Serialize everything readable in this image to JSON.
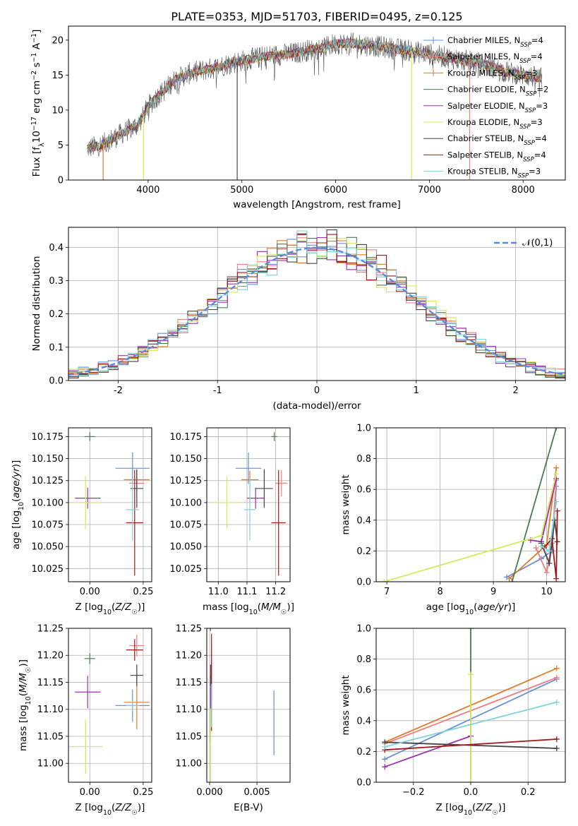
{
  "figure": {
    "title": "PLATE=0353, MJD=51703, FIBERID=0495, z=0.125"
  },
  "colors": {
    "chabrier_miles": "#6a8fd8",
    "salpeter_miles": "#ee7f7f",
    "kroupa_miles": "#e07b2a",
    "chabrier_elodie": "#4a7a55",
    "salpeter_elodie": "#9b2fb0",
    "kroupa_elodie": "#d4ea5a",
    "chabrier_stelib": "#444444",
    "salpeter_stelib": "#a01818",
    "kroupa_stelib": "#7fd3d8"
  },
  "chart_data": [
    {
      "id": "spectrum",
      "type": "line",
      "xlabel": "wavelength [Angstrom, rest frame]",
      "ylabel": "Flux [f_λ 10^-17 erg cm^-2 s^-1 A^-1]",
      "xlim": [
        3150,
        8450
      ],
      "ylim": [
        0,
        22
      ],
      "xticks": [
        4000,
        5000,
        6000,
        7000,
        8000
      ],
      "yticks": [
        0,
        5,
        10,
        15,
        20
      ],
      "grid": false,
      "legend_position": "right",
      "legend": [
        "Chabrier MILES, N_SSP=4",
        "Salpeter MILES, N_SSP=4",
        "Kroupa MILES, N_SSP=3",
        "Chabrier ELODIE, N_SSP=2",
        "Salpeter ELODIE, N_SSP=3",
        "Kroupa ELODIE, N_SSP=3",
        "Chabrier STELIB, N_SSP=4",
        "Salpeter STELIB, N_SSP=4",
        "Kroupa STELIB, N_SSP=3"
      ],
      "continuum": {
        "x": [
          3350,
          3500,
          3700,
          3900,
          4000,
          4100,
          4300,
          4500,
          4700,
          4900,
          5100,
          5300,
          5500,
          5700,
          5900,
          6000,
          6200,
          6400,
          6600,
          6800,
          7000,
          7200,
          7400,
          7600,
          7800,
          8000,
          8200
        ],
        "y": [
          4.5,
          5.0,
          6.5,
          8.0,
          10.5,
          12.0,
          14.5,
          15.5,
          16.0,
          16.8,
          17.3,
          17.8,
          18.0,
          18.5,
          19.0,
          19.5,
          19.5,
          19.2,
          18.8,
          18.5,
          18.0,
          17.5,
          17.0,
          16.5,
          15.5,
          15.0,
          14.5
        ]
      }
    },
    {
      "id": "residuals",
      "type": "histogram",
      "xlabel": "(data-model)/error",
      "ylabel": "Normed distribution",
      "xlim": [
        -2.5,
        2.5
      ],
      "ylim": [
        0,
        0.46
      ],
      "xticks": [
        -2,
        -1,
        0,
        1,
        2
      ],
      "yticks": [
        0.0,
        0.1,
        0.2,
        0.3,
        0.4
      ],
      "grid": true,
      "legend": [
        "𝒩(0,1)"
      ],
      "legend_position": "top-right",
      "bin_width": 0.1,
      "reference_curve": "gaussian mean 0 sigma 1"
    },
    {
      "id": "age_vs_Z",
      "type": "errorbar",
      "xlabel": "Z [log10(Z/Z☉)]",
      "ylabel": "age  [log10(age/yr)]",
      "xlim": [
        -0.1,
        0.29
      ],
      "ylim": [
        10.01,
        10.185
      ],
      "xticks": [
        0.0,
        0.25
      ],
      "yticks": [
        10.025,
        10.05,
        10.075,
        10.1,
        10.125,
        10.15,
        10.175
      ],
      "grid": true,
      "points": [
        {
          "key": "chabrier_miles",
          "x": 0.2,
          "xerr": 0.08,
          "y": 10.139,
          "yerr": 0.018
        },
        {
          "key": "salpeter_miles",
          "x": 0.22,
          "xerr": 0.035,
          "y": 10.122,
          "yerr": 0.015
        },
        {
          "key": "kroupa_miles",
          "x": 0.22,
          "xerr": 0.06,
          "y": 10.126,
          "yerr": 0.01
        },
        {
          "key": "chabrier_elodie",
          "x": 0.0,
          "xerr": 0.025,
          "y": 10.175,
          "yerr": 0.005
        },
        {
          "key": "salpeter_elodie",
          "x": -0.01,
          "xerr": 0.06,
          "y": 10.105,
          "yerr": 0.012
        },
        {
          "key": "kroupa_elodie",
          "x": -0.02,
          "xerr": 0.08,
          "y": 10.1,
          "yerr": 0.03
        },
        {
          "key": "chabrier_stelib",
          "x": 0.22,
          "xerr": 0.03,
          "y": 10.116,
          "yerr": 0.022
        },
        {
          "key": "salpeter_stelib",
          "x": 0.21,
          "xerr": 0.04,
          "y": 10.077,
          "yerr": 0.06
        },
        {
          "key": "kroupa_stelib",
          "x": 0.2,
          "xerr": 0.03,
          "y": 10.092,
          "yerr": 0.035
        }
      ]
    },
    {
      "id": "age_vs_mass",
      "type": "errorbar",
      "xlabel": "mass [log10(M/M☉)]",
      "ylabel": "",
      "xlim": [
        10.96,
        11.25
      ],
      "ylim": [
        10.01,
        10.185
      ],
      "xticks": [
        11.0,
        11.1,
        11.2
      ],
      "yticks": [
        10.025,
        10.05,
        10.075,
        10.1,
        10.125,
        10.15,
        10.175
      ],
      "grid": true,
      "points": [
        {
          "key": "chabrier_miles",
          "x": 11.105,
          "xerr": 0.045,
          "y": 10.139,
          "yerr": 0.018
        },
        {
          "key": "salpeter_miles",
          "x": 11.22,
          "xerr": 0.02,
          "y": 10.122,
          "yerr": 0.015
        },
        {
          "key": "kroupa_miles",
          "x": 11.11,
          "xerr": 0.03,
          "y": 10.126,
          "yerr": 0.01
        },
        {
          "key": "chabrier_elodie",
          "x": 11.195,
          "xerr": 0.01,
          "y": 10.175,
          "yerr": 0.005
        },
        {
          "key": "salpeter_elodie",
          "x": 11.13,
          "xerr": 0.03,
          "y": 10.105,
          "yerr": 0.012
        },
        {
          "key": "kroupa_elodie",
          "x": 11.03,
          "xerr": 0.05,
          "y": 10.1,
          "yerr": 0.03
        },
        {
          "key": "chabrier_stelib",
          "x": 11.16,
          "xerr": 0.03,
          "y": 10.116,
          "yerr": 0.022
        },
        {
          "key": "salpeter_stelib",
          "x": 11.21,
          "xerr": 0.025,
          "y": 10.077,
          "yerr": 0.06
        },
        {
          "key": "kroupa_stelib",
          "x": 11.11,
          "xerr": 0.02,
          "y": 10.092,
          "yerr": 0.035
        }
      ]
    },
    {
      "id": "massweight_vs_age",
      "type": "line",
      "xlabel": "age  [log10(age/yr)]",
      "ylabel": "mass weight",
      "xlim": [
        6.8,
        10.35
      ],
      "ylim": [
        0,
        1
      ],
      "xticks": [
        7,
        8,
        9,
        10
      ],
      "yticks": [
        0.0,
        0.2,
        0.4,
        0.6,
        0.8,
        1.0
      ],
      "grid": true,
      "series": [
        {
          "key": "chabrier_miles",
          "x": [
            9.25,
            9.9,
            10.1,
            10.18
          ],
          "y": [
            0.03,
            0.15,
            0.2,
            0.62
          ]
        },
        {
          "key": "salpeter_miles",
          "x": [
            9.8,
            10.0,
            10.1,
            10.18
          ],
          "y": [
            0.22,
            0.06,
            0.25,
            0.66
          ]
        },
        {
          "key": "kroupa_miles",
          "x": [
            9.3,
            10.0,
            10.18
          ],
          "y": [
            0.02,
            0.24,
            0.74
          ]
        },
        {
          "key": "chabrier_elodie",
          "x": [
            9.35,
            10.18
          ],
          "y": [
            0.0,
            1.0
          ]
        },
        {
          "key": "salpeter_elodie",
          "x": [
            9.7,
            9.9,
            10.18
          ],
          "y": [
            0.27,
            0.26,
            0.67
          ]
        },
        {
          "key": "kroupa_elodie",
          "x": [
            6.95,
            9.9,
            10.18
          ],
          "y": [
            0.0,
            0.3,
            0.7
          ]
        },
        {
          "key": "chabrier_stelib",
          "x": [
            9.9,
            10.05,
            10.15,
            10.2
          ],
          "y": [
            0.25,
            0.12,
            0.4,
            0.26
          ]
        },
        {
          "key": "salpeter_stelib",
          "x": [
            9.95,
            10.1,
            10.18,
            10.2
          ],
          "y": [
            0.22,
            0.28,
            0.02,
            0.46
          ]
        },
        {
          "key": "kroupa_stelib",
          "x": [
            9.9,
            10.05,
            10.18
          ],
          "y": [
            0.23,
            0.2,
            0.52
          ]
        }
      ]
    },
    {
      "id": "mass_vs_Z",
      "type": "errorbar",
      "xlabel": "Z [log10(Z/Z☉)]",
      "ylabel": "mass [log10(M/M☉)]",
      "xlim": [
        -0.1,
        0.29
      ],
      "ylim": [
        10.965,
        11.25
      ],
      "xticks": [
        0.0,
        0.25
      ],
      "yticks": [
        11.0,
        11.05,
        11.1,
        11.15,
        11.2,
        11.25
      ],
      "grid": true,
      "points": [
        {
          "key": "chabrier_miles",
          "x": 0.2,
          "xerr": 0.08,
          "y": 11.107,
          "yerr": 0.03
        },
        {
          "key": "salpeter_miles",
          "x": 0.22,
          "xerr": 0.035,
          "y": 11.218,
          "yerr": 0.02
        },
        {
          "key": "kroupa_miles",
          "x": 0.22,
          "xerr": 0.06,
          "y": 11.113,
          "yerr": 0.05
        },
        {
          "key": "chabrier_elodie",
          "x": 0.0,
          "xerr": 0.025,
          "y": 11.194,
          "yerr": 0.01
        },
        {
          "key": "salpeter_elodie",
          "x": -0.01,
          "xerr": 0.06,
          "y": 11.132,
          "yerr": 0.03
        },
        {
          "key": "kroupa_elodie",
          "x": -0.02,
          "xerr": 0.08,
          "y": 11.031,
          "yerr": 0.05
        },
        {
          "key": "chabrier_stelib",
          "x": 0.22,
          "xerr": 0.03,
          "y": 11.163,
          "yerr": 0.02
        },
        {
          "key": "salpeter_stelib",
          "x": 0.21,
          "xerr": 0.04,
          "y": 11.21,
          "yerr": 0.02
        },
        {
          "key": "kroupa_stelib",
          "x": 0.2,
          "xerr": 0.03,
          "y": 11.107,
          "yerr": 0.01
        }
      ]
    },
    {
      "id": "mass_vs_ebv",
      "type": "errorbar",
      "xlabel": "E(B-V)",
      "ylabel": "",
      "xlim": [
        -0.0003,
        0.0085
      ],
      "ylim": [
        10.965,
        11.25
      ],
      "xticks": [
        0.0,
        0.005
      ],
      "yticks": [
        11.0,
        11.05,
        11.1,
        11.15,
        11.2,
        11.25
      ],
      "grid": true,
      "points": [
        {
          "key": "chabrier_miles",
          "x": 0.0068,
          "xerr": 0,
          "y": 11.075,
          "yerr": 0.06
        },
        {
          "key": "salpeter_miles",
          "x": 0.0002,
          "xerr": 0,
          "y": 11.17,
          "yerr": 0.05
        },
        {
          "key": "kroupa_miles",
          "x": 0.0001,
          "xerr": 0,
          "y": 11.09,
          "yerr": 0.05
        },
        {
          "key": "chabrier_elodie",
          "x": 0.0001,
          "xerr": 0,
          "y": 11.25,
          "yerr": 0.005
        },
        {
          "key": "salpeter_elodie",
          "x": 0.0001,
          "xerr": 0,
          "y": 11.132,
          "yerr": 0.03
        },
        {
          "key": "kroupa_elodie",
          "x": 0.0001,
          "xerr": 0,
          "y": 11.031,
          "yerr": 0.07
        },
        {
          "key": "chabrier_stelib",
          "x": 0.0001,
          "xerr": 0,
          "y": 11.163,
          "yerr": 0.02
        },
        {
          "key": "salpeter_stelib",
          "x": 0.0002,
          "xerr": 0,
          "y": 11.15,
          "yerr": 0.09
        },
        {
          "key": "kroupa_stelib",
          "x": 0.0002,
          "xerr": 0,
          "y": 11.107,
          "yerr": 0.04
        }
      ]
    },
    {
      "id": "massweight_vs_Z",
      "type": "line",
      "xlabel": "Z [log10(Z/Z☉)]",
      "ylabel": "mass weight",
      "xlim": [
        -0.33,
        0.33
      ],
      "ylim": [
        0,
        1
      ],
      "xticks": [
        -0.2,
        0.0,
        0.2
      ],
      "yticks": [
        0.0,
        0.2,
        0.4,
        0.6,
        0.8,
        1.0
      ],
      "grid": true,
      "series": [
        {
          "key": "chabrier_miles",
          "x": [
            -0.3,
            0.3
          ],
          "y": [
            0.15,
            0.67
          ]
        },
        {
          "key": "salpeter_miles",
          "x": [
            -0.3,
            0.3
          ],
          "y": [
            0.25,
            0.68
          ]
        },
        {
          "key": "kroupa_miles",
          "x": [
            -0.3,
            0.3
          ],
          "y": [
            0.26,
            0.74
          ]
        },
        {
          "key": "chabrier_elodie",
          "x": [
            0.0,
            0.0
          ],
          "y": [
            0.0,
            1.0
          ]
        },
        {
          "key": "salpeter_elodie",
          "x": [
            -0.3,
            0.0
          ],
          "y": [
            0.1,
            0.3
          ]
        },
        {
          "key": "kroupa_elodie",
          "x": [
            0.0,
            0.0
          ],
          "y": [
            0.0,
            0.7
          ]
        },
        {
          "key": "chabrier_stelib",
          "x": [
            -0.3,
            0.3
          ],
          "y": [
            0.26,
            0.22
          ]
        },
        {
          "key": "salpeter_stelib",
          "x": [
            -0.3,
            0.3
          ],
          "y": [
            0.21,
            0.28
          ]
        },
        {
          "key": "kroupa_stelib",
          "x": [
            -0.3,
            0.3
          ],
          "y": [
            0.23,
            0.52
          ]
        }
      ]
    }
  ]
}
